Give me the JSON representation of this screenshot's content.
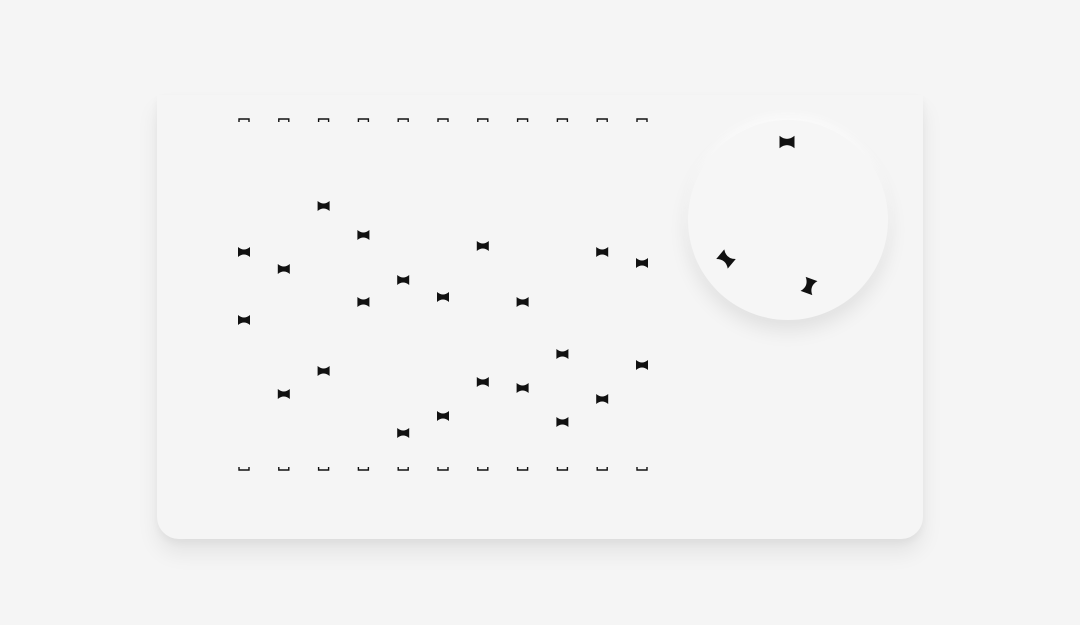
{
  "colors": {
    "background": "#f5f5f5",
    "mark": "#111111"
  },
  "icons": {
    "slot_marker": "bowtie-slot-icon",
    "knob_marker": "bowtie-icon"
  },
  "grid": {
    "columns": 11
  },
  "knob_marker_rotations": [
    0,
    40,
    -70
  ]
}
